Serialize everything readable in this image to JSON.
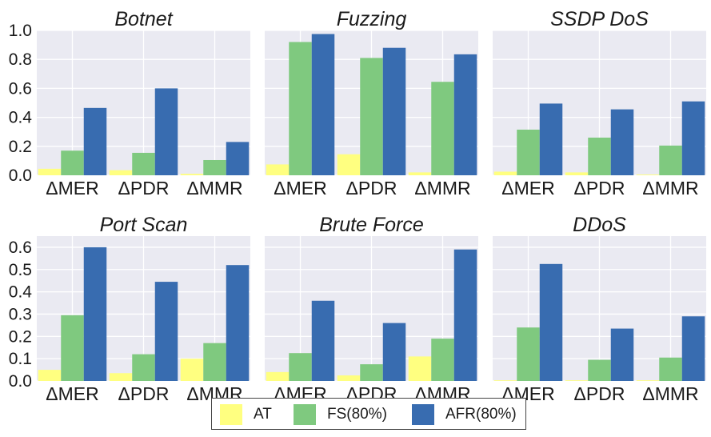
{
  "chart_data": [
    {
      "type": "bar",
      "title": "Botnet",
      "categories": [
        "ΔMER",
        "ΔPDR",
        "ΔMMR"
      ],
      "ylim": [
        0,
        1.0
      ],
      "yticks": [
        "0.0",
        "0.2",
        "0.4",
        "0.6",
        "0.8",
        "1.0"
      ],
      "show_yticks": true,
      "series": [
        {
          "name": "AT",
          "values": [
            0.045,
            0.035,
            0.01
          ]
        },
        {
          "name": "FS(80%)",
          "values": [
            0.17,
            0.155,
            0.105
          ]
        },
        {
          "name": "AFR(80%)",
          "values": [
            0.465,
            0.6,
            0.23
          ]
        }
      ]
    },
    {
      "type": "bar",
      "title": "Fuzzing",
      "categories": [
        "ΔMER",
        "ΔPDR",
        "ΔMMR"
      ],
      "ylim": [
        0,
        1.0
      ],
      "yticks": [
        "0.0",
        "0.2",
        "0.4",
        "0.6",
        "0.8",
        "1.0"
      ],
      "show_yticks": false,
      "series": [
        {
          "name": "AT",
          "values": [
            0.075,
            0.145,
            0.02
          ]
        },
        {
          "name": "FS(80%)",
          "values": [
            0.92,
            0.81,
            0.645
          ]
        },
        {
          "name": "AFR(80%)",
          "values": [
            0.975,
            0.88,
            0.835
          ]
        }
      ]
    },
    {
      "type": "bar",
      "title": "SSDP DoS",
      "categories": [
        "ΔMER",
        "ΔPDR",
        "ΔMMR"
      ],
      "ylim": [
        0,
        1.0
      ],
      "yticks": [
        "0.0",
        "0.2",
        "0.4",
        "0.6",
        "0.8",
        "1.0"
      ],
      "show_yticks": false,
      "series": [
        {
          "name": "AT",
          "values": [
            0.025,
            0.02,
            0.005
          ]
        },
        {
          "name": "FS(80%)",
          "values": [
            0.315,
            0.26,
            0.205
          ]
        },
        {
          "name": "AFR(80%)",
          "values": [
            0.495,
            0.455,
            0.51
          ]
        }
      ]
    },
    {
      "type": "bar",
      "title": "Port Scan",
      "categories": [
        "ΔMER",
        "ΔPDR",
        "ΔMMR"
      ],
      "ylim": [
        0,
        0.65
      ],
      "yticks": [
        "0.0",
        "0.1",
        "0.2",
        "0.3",
        "0.4",
        "0.5",
        "0.6"
      ],
      "show_yticks": true,
      "series": [
        {
          "name": "AT",
          "values": [
            0.05,
            0.035,
            0.1
          ]
        },
        {
          "name": "FS(80%)",
          "values": [
            0.295,
            0.12,
            0.17
          ]
        },
        {
          "name": "AFR(80%)",
          "values": [
            0.6,
            0.445,
            0.52
          ]
        }
      ]
    },
    {
      "type": "bar",
      "title": "Brute Force",
      "categories": [
        "ΔMER",
        "ΔPDR",
        "ΔMMR"
      ],
      "ylim": [
        0,
        0.65
      ],
      "yticks": [
        "0.0",
        "0.1",
        "0.2",
        "0.3",
        "0.4",
        "0.5",
        "0.6"
      ],
      "show_yticks": false,
      "series": [
        {
          "name": "AT",
          "values": [
            0.04,
            0.025,
            0.11
          ]
        },
        {
          "name": "FS(80%)",
          "values": [
            0.125,
            0.075,
            0.19
          ]
        },
        {
          "name": "AFR(80%)",
          "values": [
            0.36,
            0.26,
            0.59
          ]
        }
      ]
    },
    {
      "type": "bar",
      "title": "DDoS",
      "categories": [
        "ΔMER",
        "ΔPDR",
        "ΔMMR"
      ],
      "ylim": [
        0,
        0.65
      ],
      "yticks": [
        "0.0",
        "0.1",
        "0.2",
        "0.3",
        "0.4",
        "0.5",
        "0.6"
      ],
      "show_yticks": false,
      "series": [
        {
          "name": "AT",
          "values": [
            0.003,
            0.003,
            0.003
          ]
        },
        {
          "name": "FS(80%)",
          "values": [
            0.24,
            0.095,
            0.105
          ]
        },
        {
          "name": "AFR(80%)",
          "values": [
            0.525,
            0.235,
            0.29
          ]
        }
      ]
    }
  ],
  "legend": {
    "placement": "bottom-center",
    "items": [
      {
        "label": "AT",
        "color": "#ffff80"
      },
      {
        "label": "FS(80%)",
        "color": "#7fc97f"
      },
      {
        "label": "AFR(80%)",
        "color": "#386cb0"
      }
    ]
  },
  "colors": {
    "AT": "#ffff80",
    "FS(80%)": "#7fc97f",
    "AFR(80%)": "#386cb0",
    "panel_bg": "#eaeaf2",
    "grid": "#ffffff"
  },
  "grid": true
}
